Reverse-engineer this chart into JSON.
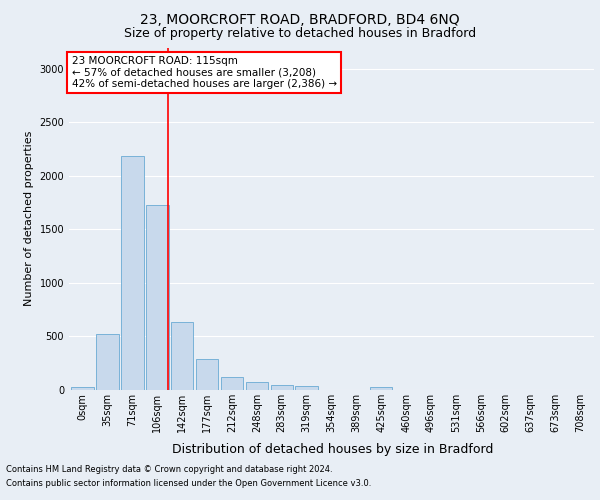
{
  "title": "23, MOORCROFT ROAD, BRADFORD, BD4 6NQ",
  "subtitle": "Size of property relative to detached houses in Bradford",
  "xlabel": "Distribution of detached houses by size in Bradford",
  "ylabel": "Number of detached properties",
  "bar_color": "#c8d9ec",
  "bar_edge_color": "#6aaad4",
  "vline_color": "red",
  "vline_position": 3.43,
  "annotation_title": "23 MOORCROFT ROAD: 115sqm",
  "annotation_line1": "← 57% of detached houses are smaller (3,208)",
  "annotation_line2": "42% of semi-detached houses are larger (2,386) →",
  "annotation_box_color": "white",
  "annotation_box_edge": "red",
  "categories": [
    "0sqm",
    "35sqm",
    "71sqm",
    "106sqm",
    "142sqm",
    "177sqm",
    "212sqm",
    "248sqm",
    "283sqm",
    "319sqm",
    "354sqm",
    "389sqm",
    "425sqm",
    "460sqm",
    "496sqm",
    "531sqm",
    "566sqm",
    "602sqm",
    "637sqm",
    "673sqm",
    "708sqm"
  ],
  "values": [
    30,
    520,
    2190,
    1730,
    635,
    290,
    125,
    75,
    45,
    35,
    0,
    0,
    30,
    0,
    0,
    0,
    0,
    0,
    0,
    0,
    0
  ],
  "ylim": [
    0,
    3200
  ],
  "yticks": [
    0,
    500,
    1000,
    1500,
    2000,
    2500,
    3000
  ],
  "background_color": "#e8eef5",
  "plot_bg_color": "#e8eef5",
  "footer1": "Contains HM Land Registry data © Crown copyright and database right 2024.",
  "footer2": "Contains public sector information licensed under the Open Government Licence v3.0.",
  "title_fontsize": 10,
  "subtitle_fontsize": 9,
  "ylabel_fontsize": 8,
  "xlabel_fontsize": 9,
  "tick_fontsize": 7,
  "annotation_fontsize": 7.5,
  "footer_fontsize": 6
}
